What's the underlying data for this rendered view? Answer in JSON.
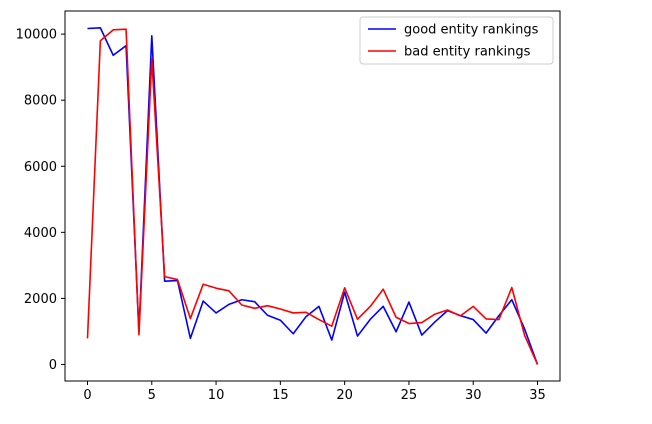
{
  "chart_data": {
    "type": "line",
    "title": "",
    "xlabel": "",
    "ylabel": "",
    "xlim": [
      -1.75,
      36.75
    ],
    "ylim": [
      -500,
      10700
    ],
    "xticks": [
      0,
      5,
      10,
      15,
      20,
      25,
      30,
      35
    ],
    "yticks": [
      0,
      2000,
      4000,
      6000,
      8000,
      10000
    ],
    "grid": false,
    "legend_position": "upper right",
    "x": [
      0,
      1,
      2,
      3,
      4,
      5,
      6,
      7,
      8,
      9,
      10,
      11,
      12,
      13,
      14,
      15,
      16,
      17,
      18,
      19,
      20,
      21,
      22,
      23,
      24,
      25,
      26,
      27,
      28,
      29,
      30,
      31,
      32,
      33,
      34,
      35
    ],
    "series": [
      {
        "name": "good entity rankings",
        "color": "#0000ff",
        "values": [
          10170,
          10190,
          9360,
          9650,
          1000,
          9950,
          2520,
          2540,
          790,
          1920,
          1560,
          1820,
          1960,
          1900,
          1490,
          1340,
          930,
          1450,
          1760,
          740,
          2190,
          860,
          1370,
          1760,
          990,
          1890,
          890,
          1280,
          1630,
          1480,
          1360,
          950,
          1480,
          1960,
          1070,
          0
        ]
      },
      {
        "name": "bad entity rankings",
        "color": "#ff0000",
        "values": [
          790,
          9800,
          10130,
          10150,
          900,
          9250,
          2660,
          2570,
          1390,
          2430,
          2310,
          2230,
          1800,
          1700,
          1780,
          1680,
          1560,
          1580,
          1360,
          1160,
          2320,
          1370,
          1760,
          2280,
          1430,
          1240,
          1270,
          1520,
          1650,
          1470,
          1760,
          1380,
          1360,
          2330,
          880,
          0
        ]
      }
    ]
  }
}
